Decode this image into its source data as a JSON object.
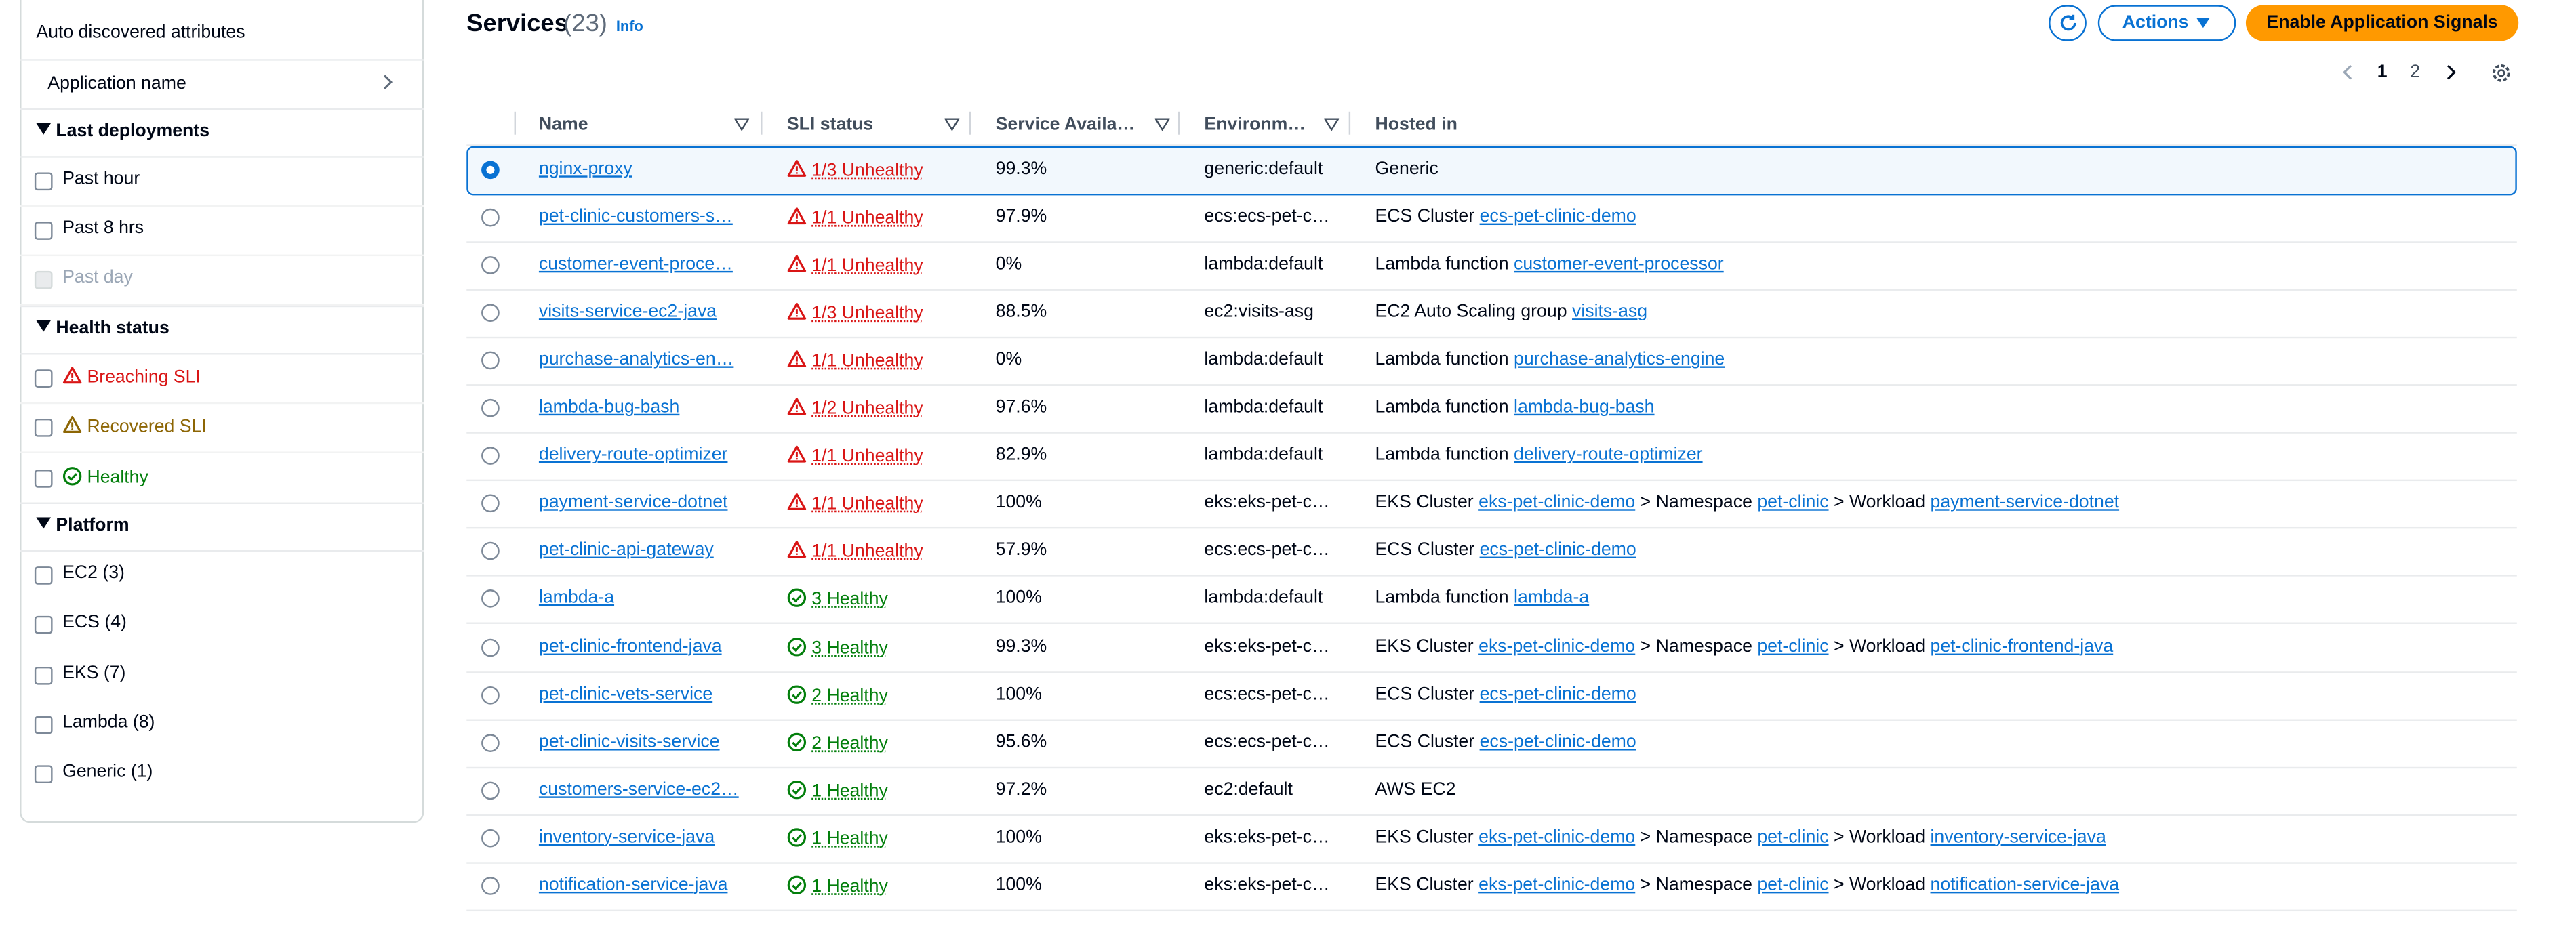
{
  "sidebar": {
    "attributes_title": "Auto discovered attributes",
    "application_name": "Application name",
    "sections": [
      {
        "title": "Last deployments",
        "items": [
          "Past hour",
          "Past 8 hrs",
          "Past day"
        ]
      },
      {
        "title": "Health status",
        "items": [
          "Breaching SLI",
          "Recovered SLI",
          "Healthy"
        ]
      },
      {
        "title": "Platform",
        "items": [
          "EC2 (3)",
          "ECS (4)",
          "EKS (7)",
          "Lambda (8)",
          "Generic (1)"
        ]
      }
    ]
  },
  "header": {
    "title": "Services",
    "count": "(23)",
    "info": "Info",
    "actions": "Actions",
    "enable": "Enable Application Signals",
    "pages": [
      "1",
      "2"
    ]
  },
  "table": {
    "columns": [
      "Name",
      "SLI status",
      "Service Availa…",
      "Environm…",
      "Hosted in"
    ],
    "rows": [
      {
        "name": "nginx-proxy",
        "status": "1/3 Unhealthy",
        "availability": "99.3%",
        "environment": "generic:default",
        "hosted": [
          {
            "label": "Generic"
          }
        ]
      },
      {
        "name": "pet-clinic-customers-s…",
        "status": "1/1 Unhealthy",
        "availability": "97.9%",
        "environment": "ecs:ecs-pet-c…",
        "hosted": [
          {
            "label": "ECS Cluster"
          },
          {
            "link": "ecs-pet-clinic-demo"
          }
        ]
      },
      {
        "name": "customer-event-proce…",
        "status": "1/1 Unhealthy",
        "availability": "0%",
        "environment": "lambda:default",
        "hosted": [
          {
            "label": "Lambda function"
          },
          {
            "link": "customer-event-processor"
          }
        ]
      },
      {
        "name": "visits-service-ec2-java",
        "status": "1/3 Unhealthy",
        "availability": "88.5%",
        "environment": "ec2:visits-asg",
        "hosted": [
          {
            "label": "EC2 Auto Scaling group"
          },
          {
            "link": "visits-asg"
          }
        ]
      },
      {
        "name": "purchase-analytics-en…",
        "status": "1/1 Unhealthy",
        "availability": "0%",
        "environment": "lambda:default",
        "hosted": [
          {
            "label": "Lambda function"
          },
          {
            "link": "purchase-analytics-engine"
          }
        ]
      },
      {
        "name": "lambda-bug-bash",
        "status": "1/2 Unhealthy",
        "availability": "97.6%",
        "environment": "lambda:default",
        "hosted": [
          {
            "label": "Lambda function"
          },
          {
            "link": "lambda-bug-bash"
          }
        ]
      },
      {
        "name": "delivery-route-optimizer",
        "status": "1/1 Unhealthy",
        "availability": "82.9%",
        "environment": "lambda:default",
        "hosted": [
          {
            "label": "Lambda function"
          },
          {
            "link": "delivery-route-optimizer"
          }
        ]
      },
      {
        "name": "payment-service-dotnet",
        "status": "1/1 Unhealthy",
        "availability": "100%",
        "environment": "eks:eks-pet-c…",
        "hosted": [
          {
            "label": "EKS Cluster"
          },
          {
            "link": "eks-pet-clinic-demo"
          },
          {
            "label": "> Namespace"
          },
          {
            "link": "pet-clinic"
          },
          {
            "label": "> Workload"
          },
          {
            "link": "payment-service-dotnet"
          }
        ]
      },
      {
        "name": "pet-clinic-api-gateway",
        "status": "1/1 Unhealthy",
        "availability": "57.9%",
        "environment": "ecs:ecs-pet-c…",
        "hosted": [
          {
            "label": "ECS Cluster"
          },
          {
            "link": "ecs-pet-clinic-demo"
          }
        ]
      },
      {
        "name": "lambda-a",
        "status": "3 Healthy",
        "availability": "100%",
        "environment": "lambda:default",
        "hosted": [
          {
            "label": "Lambda function"
          },
          {
            "link": "lambda-a"
          }
        ]
      },
      {
        "name": "pet-clinic-frontend-java",
        "status": "3 Healthy",
        "availability": "99.3%",
        "environment": "eks:eks-pet-c…",
        "hosted": [
          {
            "label": "EKS Cluster"
          },
          {
            "link": "eks-pet-clinic-demo"
          },
          {
            "label": "> Namespace"
          },
          {
            "link": "pet-clinic"
          },
          {
            "label": "> Workload"
          },
          {
            "link": "pet-clinic-frontend-java"
          }
        ]
      },
      {
        "name": "pet-clinic-vets-service",
        "status": "2 Healthy",
        "availability": "100%",
        "environment": "ecs:ecs-pet-c…",
        "hosted": [
          {
            "label": "ECS Cluster"
          },
          {
            "link": "ecs-pet-clinic-demo"
          }
        ]
      },
      {
        "name": "pet-clinic-visits-service",
        "status": "2 Healthy",
        "availability": "95.6%",
        "environment": "ecs:ecs-pet-c…",
        "hosted": [
          {
            "label": "ECS Cluster"
          },
          {
            "link": "ecs-pet-clinic-demo"
          }
        ]
      },
      {
        "name": "customers-service-ec2…",
        "status": "1 Healthy",
        "availability": "97.2%",
        "environment": "ec2:default",
        "hosted": [
          {
            "label": "AWS EC2"
          }
        ]
      },
      {
        "name": "inventory-service-java",
        "status": "1 Healthy",
        "availability": "100%",
        "environment": "eks:eks-pet-c…",
        "hosted": [
          {
            "label": "EKS Cluster"
          },
          {
            "link": "eks-pet-clinic-demo"
          },
          {
            "label": "> Namespace"
          },
          {
            "link": "pet-clinic"
          },
          {
            "label": "> Workload"
          },
          {
            "link": "inventory-service-java"
          }
        ]
      },
      {
        "name": "notification-service-java",
        "status": "1 Healthy",
        "availability": "100%",
        "environment": "eks:eks-pet-c…",
        "hosted": [
          {
            "label": "EKS Cluster"
          },
          {
            "link": "eks-pet-clinic-demo"
          },
          {
            "label": "> Namespace"
          },
          {
            "link": "pet-clinic"
          },
          {
            "label": "> Workload"
          },
          {
            "link": "notification-service-java"
          }
        ]
      }
    ]
  }
}
